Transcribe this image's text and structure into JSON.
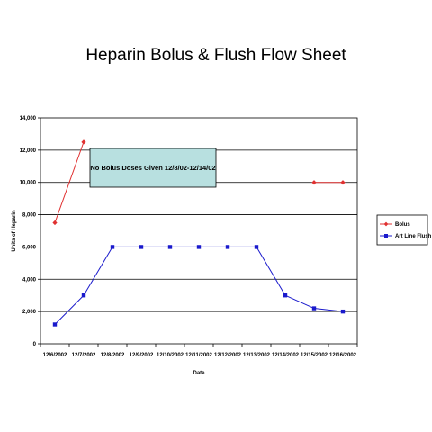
{
  "chart_data": {
    "type": "line",
    "title": "Heparin Bolus & Flush Flow Sheet",
    "xlabel": "Date",
    "ylabel": "Units of Heparin",
    "categories": [
      "12/6/2002",
      "12/7/2002",
      "12/8/2002",
      "12/9/2002",
      "12/10/2002",
      "12/11/2002",
      "12/12/2002",
      "12/13/2002",
      "12/14/2002",
      "12/15/2002",
      "12/16/2002"
    ],
    "ylim": [
      0,
      14000
    ],
    "yticks": [
      0,
      2000,
      4000,
      6000,
      8000,
      10000,
      12000,
      14000
    ],
    "ytick_labels": [
      "0",
      "2,000",
      "4,000",
      "6,000",
      "8,000",
      "10,000",
      "12,000",
      "14,000"
    ],
    "grid": true,
    "legend_position": "right",
    "series": [
      {
        "name": "Bolus",
        "color": "#e03030",
        "marker": "diamond",
        "values": [
          7500,
          12500,
          null,
          null,
          null,
          null,
          null,
          null,
          null,
          10000,
          10000
        ]
      },
      {
        "name": "Art Line Flush",
        "color": "#1a1acc",
        "marker": "square",
        "values": [
          1200,
          3000,
          6000,
          6000,
          6000,
          6000,
          6000,
          6000,
          3000,
          2200,
          2000
        ]
      }
    ],
    "annotation": {
      "text": "No Bolus Doses Given 12/8/02-12/14/02",
      "fill": "#b8e0e0"
    }
  }
}
